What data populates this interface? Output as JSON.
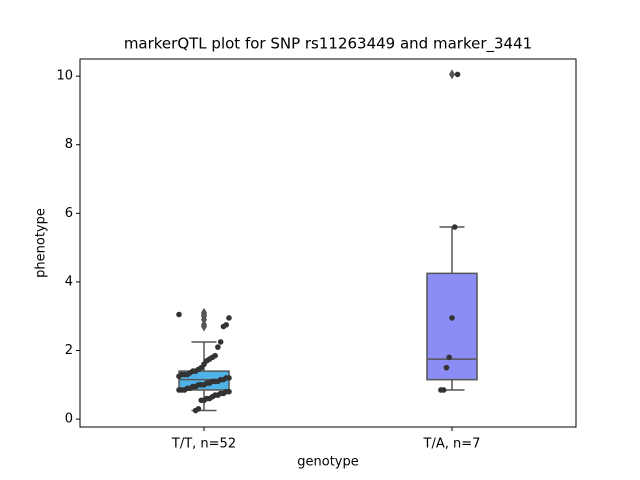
{
  "chart_data": {
    "type": "box",
    "title": "markerQTL plot for SNP rs11263449 and marker_3441",
    "x_label": "genotype",
    "y_label": "phenotype",
    "categories": [
      "T/T, n=52",
      "T/A, n=7"
    ],
    "boxes": [
      {
        "color": "#4fb3e8",
        "whislo": 0.25,
        "q1": 0.85,
        "med": 1.15,
        "q3": 1.4,
        "whishi": 2.25,
        "fliers": [
          2.7,
          2.75,
          2.9,
          3.0,
          3.05,
          3.1
        ]
      },
      {
        "color": "#8c8cf5",
        "whislo": 0.85,
        "q1": 1.15,
        "med": 1.75,
        "q3": 4.25,
        "whishi": 5.6,
        "fliers": [
          10.05
        ]
      }
    ],
    "points": [
      {
        "color": "#333333",
        "values": [
          3.05,
          2.95,
          2.75,
          2.7,
          2.25,
          2.1,
          1.85,
          1.8,
          1.75,
          1.7,
          1.6,
          1.5,
          1.45,
          1.4,
          1.4,
          1.35,
          1.3,
          1.3,
          1.3,
          1.25,
          1.2,
          1.2,
          1.15,
          1.15,
          1.1,
          1.1,
          1.1,
          1.05,
          1.05,
          1.0,
          1.0,
          1.0,
          0.95,
          0.95,
          0.9,
          0.9,
          0.85,
          0.85,
          0.85,
          0.8,
          0.8,
          0.75,
          0.75,
          0.7,
          0.7,
          0.65,
          0.6,
          0.6,
          0.55,
          0.55,
          0.3,
          0.25
        ]
      },
      {
        "color": "#333333",
        "values": [
          10.05,
          5.6,
          2.95,
          1.8,
          1.5,
          0.85,
          0.85
        ]
      }
    ],
    "ylim": [
      -0.23,
      10.5
    ],
    "yticks": [
      0,
      2,
      4,
      6,
      8,
      10
    ]
  }
}
